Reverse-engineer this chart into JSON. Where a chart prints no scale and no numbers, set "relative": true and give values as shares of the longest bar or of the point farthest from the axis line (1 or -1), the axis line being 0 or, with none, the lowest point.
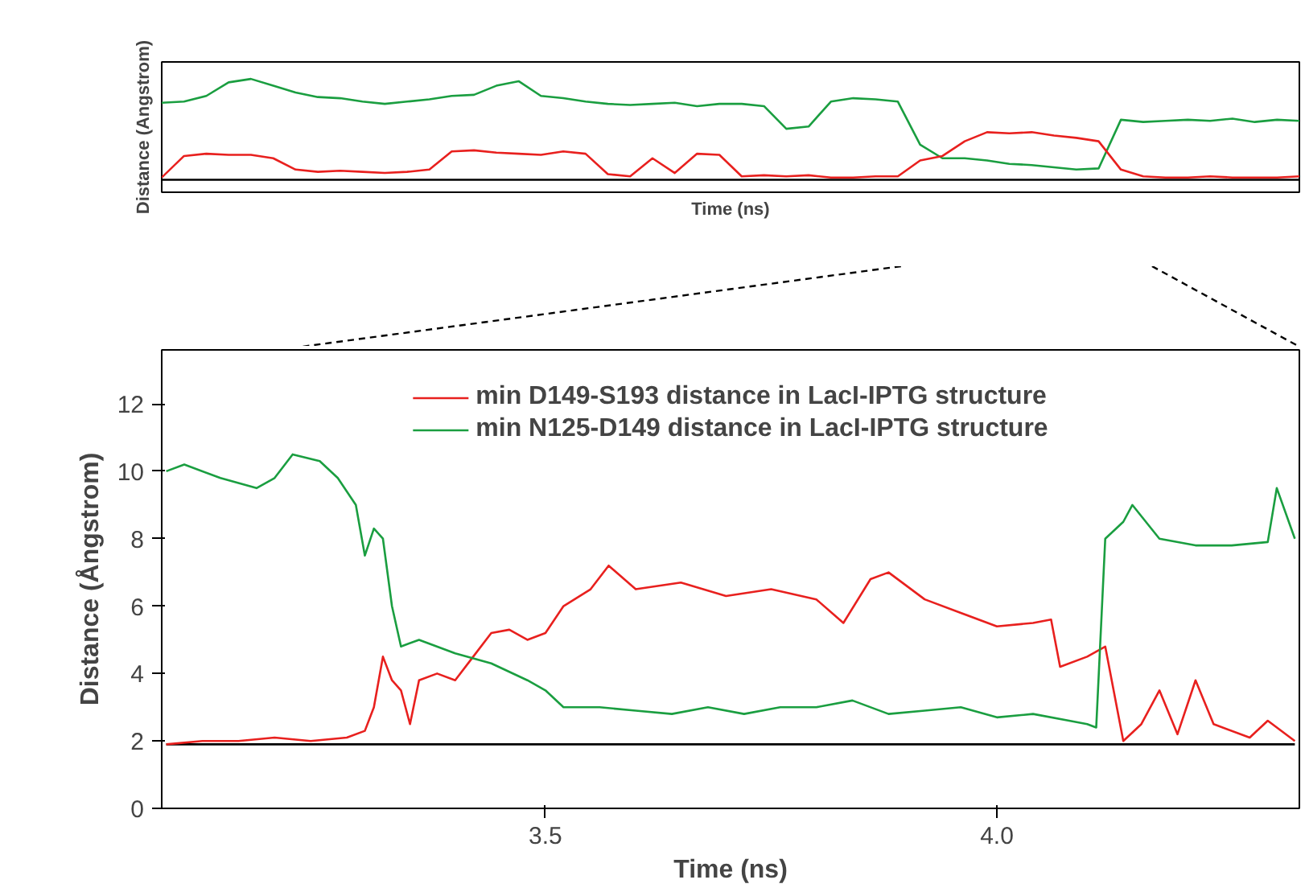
{
  "chart_data": [
    {
      "type": "line",
      "relative": true,
      "ylabel": "Distance (Angstrom)",
      "xlabel": "Time (ns)",
      "grid": false,
      "legend": false,
      "categories": [
        null,
        null,
        null,
        null,
        null,
        null,
        null,
        null,
        null,
        null,
        null,
        null,
        null,
        null,
        null,
        null,
        null,
        null,
        null,
        null,
        null,
        null,
        null,
        null,
        null,
        null,
        null,
        null,
        null,
        null,
        null,
        null,
        null,
        null,
        null,
        null,
        null,
        null,
        null,
        null,
        null,
        null,
        null,
        null,
        null,
        null,
        null,
        null,
        null,
        null,
        null,
        null
      ],
      "series": [
        {
          "color": "#000000",
          "values": [
            0.11,
            0.11,
            0.11,
            0.11,
            0.11,
            0.11,
            0.11,
            0.11,
            0.11,
            0.11,
            0.11,
            0.11,
            0.11,
            0.11,
            0.11,
            0.11,
            0.11,
            0.11,
            0.11,
            0.11,
            0.11,
            0.11,
            0.11,
            0.11,
            0.11,
            0.11,
            0.11,
            0.11,
            0.11,
            0.11,
            0.11,
            0.11,
            0.11,
            0.11,
            0.11,
            0.11,
            0.11,
            0.11,
            0.11,
            0.11,
            0.11,
            0.11,
            0.11,
            0.11,
            0.11,
            0.11,
            0.11,
            0.11,
            0.11,
            0.11,
            0.11,
            0.11
          ]
        },
        {
          "color": "#1a9e40",
          "values": [
            0.79,
            0.8,
            0.85,
            0.97,
            1.0,
            0.94,
            0.88,
            0.84,
            0.83,
            0.8,
            0.78,
            0.8,
            0.82,
            0.85,
            0.86,
            0.94,
            0.98,
            0.85,
            0.83,
            0.8,
            0.78,
            0.77,
            0.78,
            0.79,
            0.76,
            0.78,
            0.78,
            0.76,
            0.56,
            0.58,
            0.8,
            0.83,
            0.82,
            0.8,
            0.42,
            0.3,
            0.3,
            0.28,
            0.25,
            0.24,
            0.22,
            0.2,
            0.21,
            0.64,
            0.62,
            0.63,
            0.64,
            0.63,
            0.65,
            0.62,
            0.64,
            0.63
          ]
        },
        {
          "color": "#e8201e",
          "values": [
            0.13,
            0.32,
            0.34,
            0.33,
            0.33,
            0.3,
            0.2,
            0.18,
            0.19,
            0.18,
            0.17,
            0.18,
            0.2,
            0.36,
            0.37,
            0.35,
            0.34,
            0.33,
            0.36,
            0.34,
            0.16,
            0.14,
            0.3,
            0.17,
            0.34,
            0.33,
            0.14,
            0.15,
            0.14,
            0.15,
            0.13,
            0.13,
            0.14,
            0.14,
            0.28,
            0.32,
            0.45,
            0.53,
            0.52,
            0.53,
            0.5,
            0.48,
            0.45,
            0.2,
            0.14,
            0.13,
            0.13,
            0.14,
            0.13,
            0.13,
            0.13,
            0.14
          ]
        }
      ]
    },
    {
      "type": "line",
      "ylabel": "Distance (Ångstrom)",
      "xlabel": "Time (ns)",
      "grid": false,
      "legend": "top",
      "xlim": [
        3.075,
        4.335
      ],
      "ylim": [
        0,
        13.6
      ],
      "xticks": [
        {
          "value": 3.5,
          "label": "3.5"
        },
        {
          "value": 4.0,
          "label": "4.0"
        }
      ],
      "yticks": [
        0,
        2,
        4,
        6,
        8,
        10,
        12
      ],
      "series": [
        {
          "color": "#000000",
          "x": [
            3.08,
            3.2,
            3.3,
            3.4,
            3.5,
            3.6,
            3.7,
            3.8,
            3.9,
            4.0,
            4.1,
            4.2,
            4.33
          ],
          "values": [
            1.9,
            1.9,
            1.9,
            1.9,
            1.9,
            1.9,
            1.9,
            1.9,
            1.9,
            1.9,
            1.9,
            1.9,
            1.9
          ]
        },
        {
          "name": "min D149-S193 distance in LacI-IPTG structure",
          "color": "#e8201e",
          "x": [
            3.08,
            3.12,
            3.16,
            3.2,
            3.24,
            3.28,
            3.3,
            3.31,
            3.32,
            3.33,
            3.34,
            3.35,
            3.36,
            3.38,
            3.4,
            3.42,
            3.44,
            3.46,
            3.48,
            3.5,
            3.52,
            3.55,
            3.57,
            3.6,
            3.65,
            3.7,
            3.75,
            3.8,
            3.83,
            3.86,
            3.88,
            3.92,
            3.96,
            4.0,
            4.04,
            4.06,
            4.07,
            4.1,
            4.12,
            4.14,
            4.16,
            4.18,
            4.2,
            4.22,
            4.24,
            4.28,
            4.3,
            4.33
          ],
          "values": [
            1.9,
            2.0,
            2.0,
            2.1,
            2.0,
            2.1,
            2.3,
            3.0,
            4.5,
            3.8,
            3.5,
            2.5,
            3.8,
            4.0,
            3.8,
            4.5,
            5.2,
            5.3,
            5.0,
            5.2,
            6.0,
            6.5,
            7.2,
            6.5,
            6.7,
            6.3,
            6.5,
            6.2,
            5.5,
            6.8,
            7.0,
            6.2,
            5.8,
            5.4,
            5.5,
            5.6,
            4.2,
            4.5,
            4.8,
            2.0,
            2.5,
            3.5,
            2.2,
            3.8,
            2.5,
            2.1,
            2.6,
            2.0
          ]
        },
        {
          "name": "min N125-D149 distance in LacI-IPTG structure",
          "color": "#1a9e40",
          "x": [
            3.08,
            3.1,
            3.14,
            3.18,
            3.2,
            3.22,
            3.25,
            3.27,
            3.29,
            3.3,
            3.31,
            3.32,
            3.33,
            3.34,
            3.36,
            3.4,
            3.44,
            3.48,
            3.5,
            3.52,
            3.56,
            3.6,
            3.64,
            3.68,
            3.72,
            3.76,
            3.8,
            3.84,
            3.88,
            3.92,
            3.96,
            4.0,
            4.04,
            4.08,
            4.1,
            4.11,
            4.12,
            4.14,
            4.15,
            4.18,
            4.22,
            4.26,
            4.3,
            4.31,
            4.33
          ],
          "values": [
            10.0,
            10.2,
            9.8,
            9.5,
            9.8,
            10.5,
            10.3,
            9.8,
            9.0,
            7.5,
            8.3,
            8.0,
            6.0,
            4.8,
            5.0,
            4.6,
            4.3,
            3.8,
            3.5,
            3.0,
            3.0,
            2.9,
            2.8,
            3.0,
            2.8,
            3.0,
            3.0,
            3.2,
            2.8,
            2.9,
            3.0,
            2.7,
            2.8,
            2.6,
            2.5,
            2.4,
            8.0,
            8.5,
            9.0,
            8.0,
            7.8,
            7.8,
            7.9,
            9.5,
            8.0
          ]
        }
      ]
    }
  ]
}
